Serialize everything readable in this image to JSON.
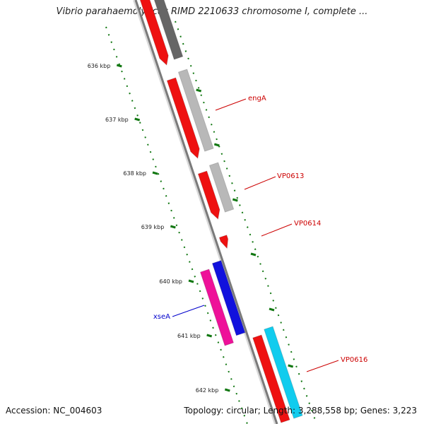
{
  "title": "Vibrio parahaemolyticus RIMD 2210633 chromosome I, complete ...",
  "footer": {
    "accession": "Accession: NC_004603",
    "topology": "Topology: circular; Length: 3,288,558 bp; Genes: 3,223"
  },
  "ticks": [
    "636 kbp",
    "637 kbp",
    "638 kbp",
    "639 kbp",
    "640 kbp",
    "641 kbp",
    "642 kbp"
  ],
  "gene_labels": [
    {
      "text": "engA",
      "color": "#cc0000"
    },
    {
      "text": "VP0613",
      "color": "#cc0000"
    },
    {
      "text": "VP0614",
      "color": "#cc0000"
    },
    {
      "text": "xseA",
      "color": "#0000cc"
    },
    {
      "text": "VP0616",
      "color": "#cc0000"
    }
  ],
  "colors": {
    "backbone": "#8a8a8a",
    "cds_red": "#ee1111",
    "gray_dark": "#666666",
    "gray_light": "#b8b8b8",
    "pink": "#ee1199",
    "blue": "#1111dd",
    "cyan": "#11ccee",
    "tick_green": "#117711"
  }
}
